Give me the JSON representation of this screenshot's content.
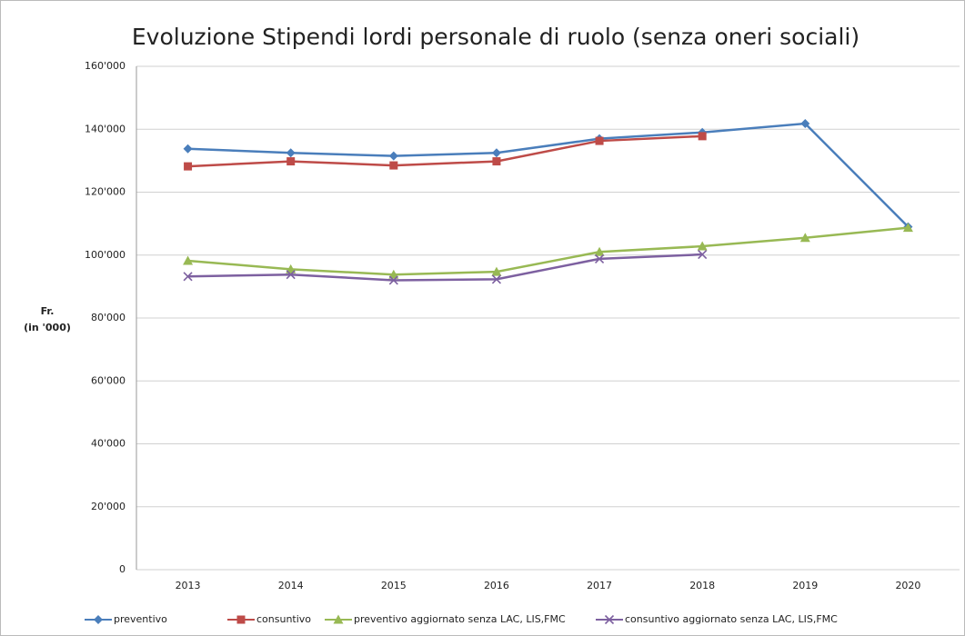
{
  "chart_data": {
    "type": "line",
    "title": "Evoluzione Stipendi lordi personale di ruolo (senza oneri sociali)",
    "ylabel": [
      "Fr.",
      "(in '000)"
    ],
    "categories": [
      "2013",
      "2014",
      "2015",
      "2016",
      "2017",
      "2018",
      "2019",
      "2020"
    ],
    "series": [
      {
        "name": "preventivo",
        "color": "#4a7ebb",
        "marker": "diamond",
        "values": [
          133800,
          132500,
          131500,
          132500,
          137000,
          139000,
          141800,
          109000
        ]
      },
      {
        "name": "consuntivo",
        "color": "#be4b48",
        "marker": "square",
        "values": [
          128200,
          129800,
          128500,
          129800,
          136300,
          137800,
          null,
          null
        ]
      },
      {
        "name": "preventivo aggiornato senza LAC, LIS,FMC",
        "color": "#98b954",
        "marker": "triangle",
        "values": [
          98200,
          95500,
          93800,
          94700,
          101000,
          102800,
          105500,
          108700
        ]
      },
      {
        "name": "consuntivo aggiornato senza LAC, LIS,FMC",
        "color": "#7d60a0",
        "marker": "x",
        "values": [
          93200,
          93800,
          92000,
          92300,
          98800,
          100200,
          null,
          null
        ]
      }
    ],
    "ylim": [
      0,
      160000
    ],
    "yticks": [
      0,
      {
        "value": 20000,
        "label": "20'000"
      },
      {
        "value": 40000,
        "label": "40'000"
      },
      {
        "value": 60000,
        "label": "60'000"
      },
      {
        "value": 80000,
        "label": "80'000"
      },
      {
        "value": 100000,
        "label": "100'000"
      },
      {
        "value": 120000,
        "label": "120'000"
      },
      {
        "value": 140000,
        "label": "140'000"
      },
      {
        "value": 160000,
        "label": "160'000"
      }
    ],
    "grid": true,
    "legend": "bottom"
  }
}
